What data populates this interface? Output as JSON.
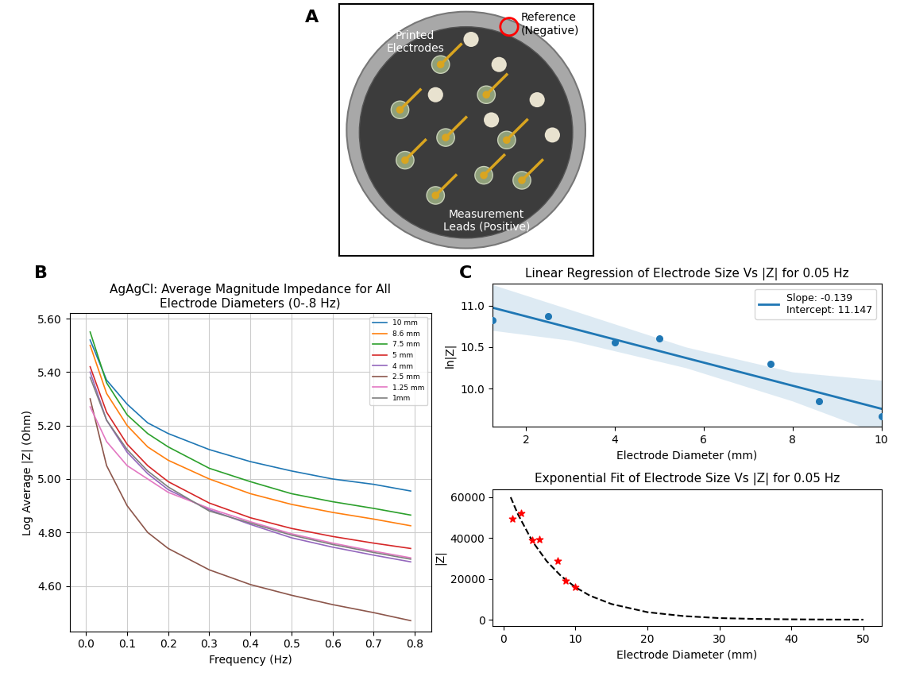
{
  "photo": {
    "panel_label": "A",
    "labels": [
      "Printed\nElectrodes",
      "Reference\n(Negative)",
      "Measurement\nLeads (Positive)"
    ]
  },
  "chart_data": [
    {
      "panel_label": "B",
      "type": "line",
      "title": "AgAgCl: Average Magnitude Impedance for All\nElectrode Diameters (0-.8 Hz)",
      "x_label": "Frequency (Hz)",
      "y_label": "Log Average |Z| (Ohm)",
      "x": [
        0.01,
        0.05,
        0.1,
        0.15,
        0.2,
        0.3,
        0.4,
        0.5,
        0.6,
        0.7,
        0.79
      ],
      "series": [
        {
          "name": "10 mm",
          "color": "#1f77b4",
          "values": [
            5.52,
            5.37,
            5.28,
            5.21,
            5.17,
            5.11,
            5.065,
            5.03,
            5.0,
            4.98,
            4.955
          ]
        },
        {
          "name": "8.6 mm",
          "color": "#ff7f0e",
          "values": [
            5.5,
            5.32,
            5.2,
            5.12,
            5.07,
            5.0,
            4.945,
            4.905,
            4.875,
            4.85,
            4.825
          ]
        },
        {
          "name": "7.5 mm",
          "color": "#2ca02c",
          "values": [
            5.55,
            5.36,
            5.24,
            5.17,
            5.12,
            5.04,
            4.99,
            4.945,
            4.915,
            4.89,
            4.865
          ]
        },
        {
          "name": "5 mm",
          "color": "#d62728",
          "values": [
            5.42,
            5.25,
            5.13,
            5.05,
            4.99,
            4.91,
            4.855,
            4.815,
            4.785,
            4.76,
            4.74
          ]
        },
        {
          "name": "4 mm",
          "color": "#9467bd",
          "values": [
            5.4,
            5.22,
            5.1,
            5.02,
            4.96,
            4.885,
            4.83,
            4.78,
            4.745,
            4.715,
            4.69
          ]
        },
        {
          "name": "2.5 mm",
          "color": "#8c564b",
          "values": [
            5.3,
            5.05,
            4.9,
            4.8,
            4.74,
            4.66,
            4.605,
            4.565,
            4.53,
            4.5,
            4.47
          ]
        },
        {
          "name": "1.25 mm",
          "color": "#e377c2",
          "values": [
            5.27,
            5.14,
            5.05,
            5.0,
            4.95,
            4.89,
            4.84,
            4.795,
            4.76,
            4.73,
            4.705
          ]
        },
        {
          "name": "1mm",
          "color": "#7f7f7f",
          "values": [
            5.38,
            5.22,
            5.11,
            5.03,
            4.97,
            4.88,
            4.835,
            4.79,
            4.755,
            4.725,
            4.7
          ]
        }
      ],
      "xlim": [
        -0.04,
        0.84
      ],
      "xticks": [
        0.0,
        0.1,
        0.2,
        0.3,
        0.4,
        0.5,
        0.6,
        0.7,
        0.8
      ],
      "ylim": [
        4.43,
        5.62
      ],
      "yticks": [
        {
          "value": 4.6,
          "label": "4.60"
        },
        {
          "value": 4.8,
          "label": "4.80"
        },
        {
          "value": 5.0,
          "label": "5.00"
        },
        {
          "value": 5.2,
          "label": "5.20"
        },
        {
          "value": 5.4,
          "label": "5.40"
        },
        {
          "value": 5.6,
          "label": "5.60"
        }
      ],
      "grid": true,
      "legend": "upper right"
    },
    {
      "panel_label": "C",
      "type": "scatter",
      "title": "Linear Regression of Electrode Size Vs |Z| for 0.05 Hz",
      "x_label": "Electrode Diameter (mm)",
      "y_label": "ln|Z|",
      "x": [
        1.25,
        2.5,
        4,
        5,
        7.5,
        8.6,
        10
      ],
      "values": [
        10.82,
        10.87,
        10.56,
        10.6,
        10.3,
        9.85,
        9.67
      ],
      "color": "#1f77b4",
      "marker": "o",
      "fit": {
        "type": "line",
        "name": "Slope: -0.139\nIntercept: 11.147",
        "slope": -0.139,
        "intercept": 11.147,
        "color": "#1f77b4",
        "line_style": "solid",
        "band": {
          "x": [
            1.25,
            3,
            5.6,
            8,
            10
          ],
          "lower": [
            10.7,
            10.58,
            10.25,
            9.85,
            9.45
          ],
          "upper": [
            11.25,
            10.95,
            10.5,
            10.2,
            10.1
          ]
        }
      },
      "xlim": [
        1.25,
        10
      ],
      "xticks": [
        2,
        4,
        6,
        8,
        10
      ],
      "ylim": [
        9.54,
        11.26
      ],
      "yticks": [
        {
          "value": 10.0,
          "label": "10.0"
        },
        {
          "value": 10.5,
          "label": "10.5"
        },
        {
          "value": 11.0,
          "label": "11.0"
        }
      ],
      "grid": false,
      "legend": "upper right"
    },
    {
      "type": "scatter",
      "title": "Exponential Fit of Electrode Size Vs |Z| for 0.05 Hz",
      "x_label": "Electrode Diameter (mm)",
      "y_label": "|Z|",
      "x": [
        1.25,
        2.5,
        4,
        5,
        7.5,
        8.6,
        10
      ],
      "values": [
        49500,
        52000,
        39000,
        39500,
        29000,
        19000,
        15800
      ],
      "color": "#ff0000",
      "marker": "*",
      "fit": {
        "type": "line",
        "color": "#000000",
        "line_style": "dashed",
        "x": [
          1,
          2,
          4,
          6,
          8,
          10,
          12,
          15,
          20,
          25,
          30,
          35,
          40,
          45,
          50
        ],
        "values": [
          60000,
          51700,
          38500,
          28700,
          21400,
          15900,
          11800,
          7700,
          3700,
          1800,
          800,
          400,
          200,
          100,
          50
        ]
      },
      "xlim": [
        -1.5,
        52.5
      ],
      "xticks": [
        0,
        10,
        20,
        30,
        40,
        50
      ],
      "ylim": [
        -3000,
        64000
      ],
      "yticks": [
        0,
        20000,
        40000,
        60000
      ],
      "grid": false
    }
  ]
}
